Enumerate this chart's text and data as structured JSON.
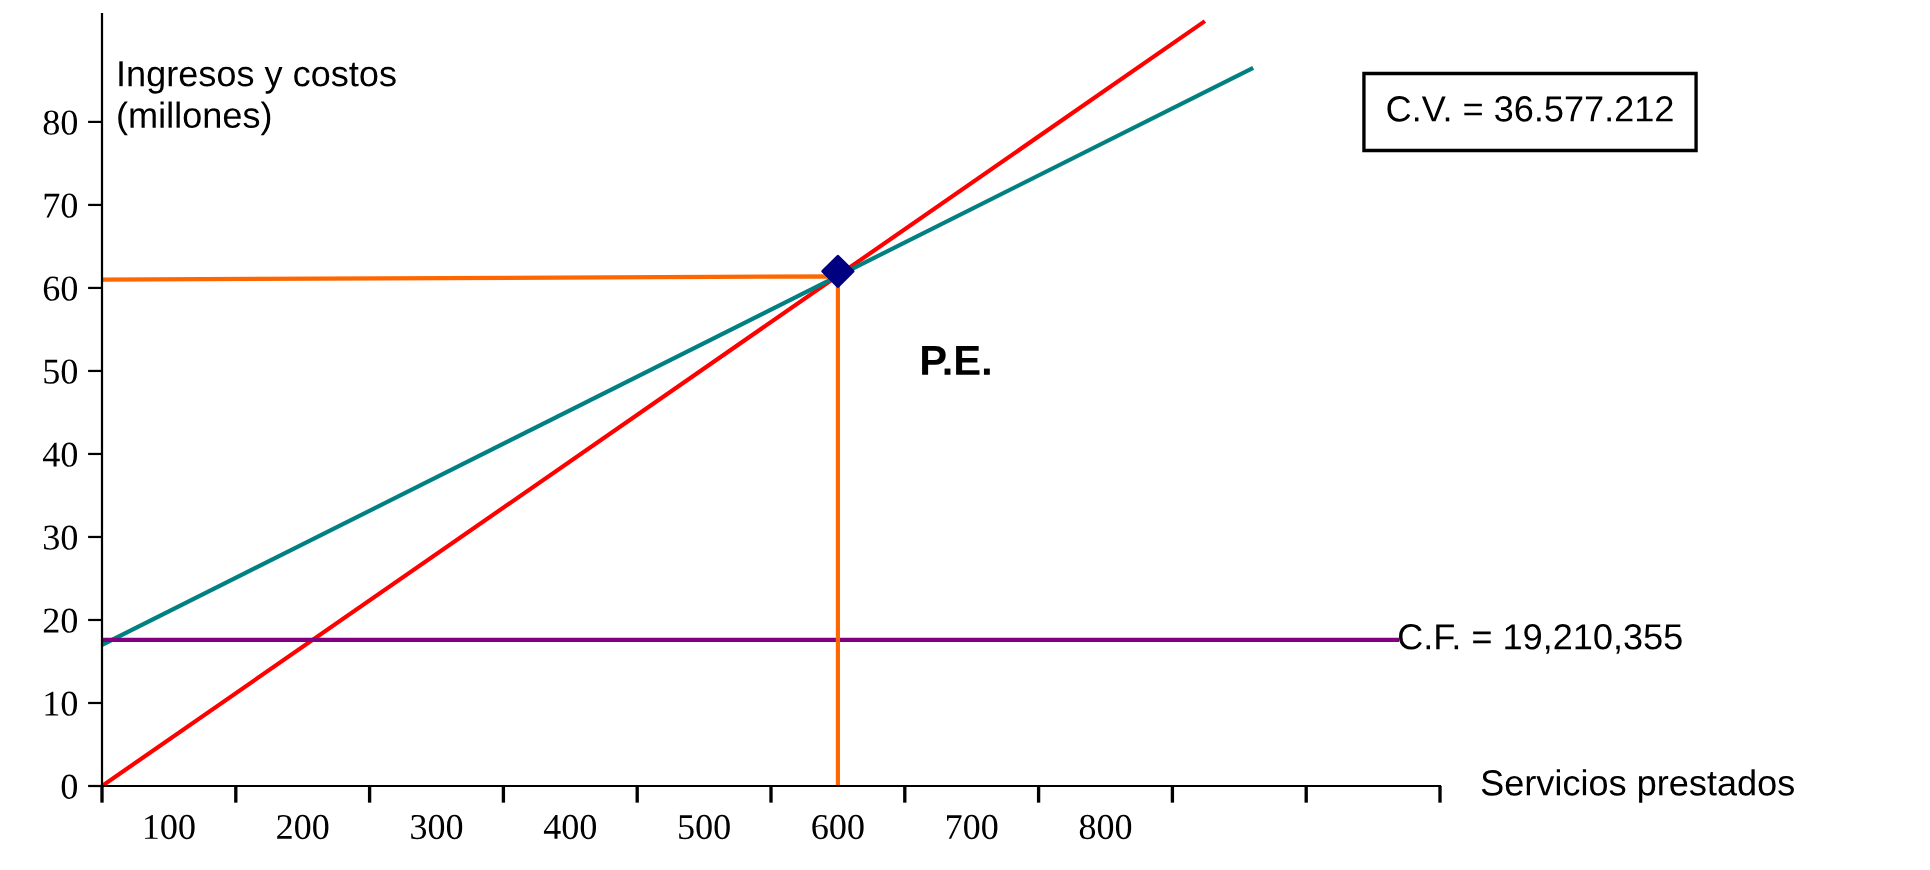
{
  "chart_data": {
    "type": "line",
    "xlabel": "Servicios prestados",
    "ylabel": "Ingresos y costos\n(millones)",
    "xlim": [
      50,
      1050
    ],
    "ylim": [
      0,
      93
    ],
    "xticks": [
      {
        "value": 50,
        "label": null
      },
      {
        "value": 100,
        "label": "100"
      },
      {
        "value": 150,
        "label": null
      },
      {
        "value": 200,
        "label": "200"
      },
      {
        "value": 250,
        "label": null
      },
      {
        "value": 300,
        "label": "300"
      },
      {
        "value": 350,
        "label": null
      },
      {
        "value": 400,
        "label": "400"
      },
      {
        "value": 450,
        "label": null
      },
      {
        "value": 500,
        "label": "500"
      },
      {
        "value": 550,
        "label": null
      },
      {
        "value": 600,
        "label": "600"
      },
      {
        "value": 650,
        "label": null
      },
      {
        "value": 700,
        "label": "700"
      },
      {
        "value": 750,
        "label": null
      },
      {
        "value": 800,
        "label": "800"
      },
      {
        "value": 850,
        "label": null
      },
      {
        "value": 950,
        "label": null
      },
      {
        "value": 1050,
        "label": null
      }
    ],
    "yticks": [
      0,
      10,
      20,
      30,
      40,
      50,
      60,
      70,
      80
    ],
    "series": [
      {
        "color": "#ff0000",
        "x": [
          50,
          873
        ],
        "values": [
          0,
          92
        ]
      },
      {
        "color": "#008080",
        "x": [
          50,
          909
        ],
        "values": [
          17,
          86.4
        ]
      },
      {
        "color": "#800080",
        "x": [
          50,
          1018
        ],
        "values": [
          17.6,
          17.6
        ]
      },
      {
        "color": "#ff6600",
        "x": [
          50,
          600,
          600
        ],
        "values": [
          61,
          61.4,
          0
        ]
      },
      {
        "type": "scatter",
        "marker": "diamond",
        "color": "#000080",
        "x": [
          600
        ],
        "values": [
          62
        ]
      }
    ],
    "annotations": [
      "P.E.",
      {
        "text": "C.F. = 19,210,355",
        "x": 1018,
        "y": 17.6
      },
      "C.V. = 36.577.212"
    ],
    "grid": false,
    "legend": false
  }
}
